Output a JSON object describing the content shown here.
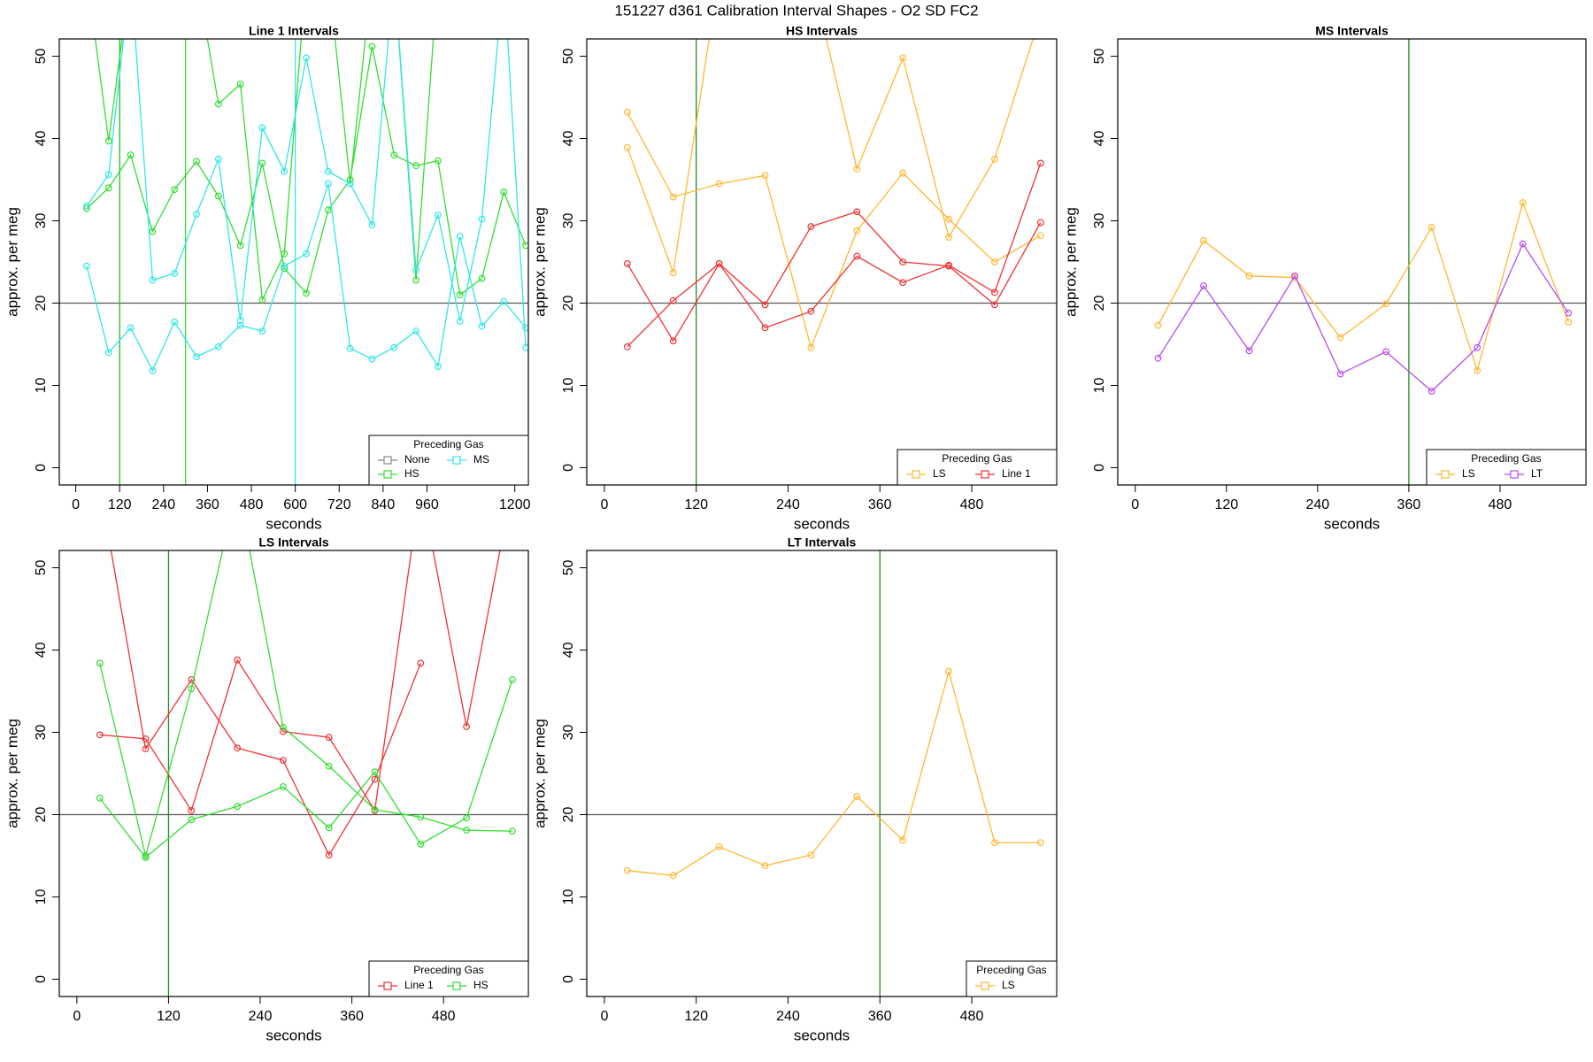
{
  "title": "151227   d361   Calibration Interval Shapes - O2 SD FC2",
  "chart_data": [
    {
      "type": "line",
      "title": "Line 1 Intervals",
      "x_label": "seconds",
      "y_label": "approx. per meg",
      "x": [
        30,
        90,
        150,
        210,
        270,
        330,
        390,
        450,
        510,
        570,
        630,
        690,
        750,
        810,
        870,
        930,
        990,
        1050,
        1110,
        1170,
        1230
      ],
      "xlim": [
        -45,
        1237
      ],
      "ylim": [
        -2.1,
        52.1
      ],
      "xticks": [
        0,
        120,
        240,
        360,
        480,
        600,
        720,
        840,
        960,
        1200
      ],
      "yticks": [
        0,
        10,
        20,
        30,
        40,
        50
      ],
      "hline": 20,
      "vlines": [
        {
          "x": 120,
          "color": "#22bb22"
        },
        {
          "x": 300,
          "color": "#33dd33"
        },
        {
          "x": 600,
          "color": "#33e6e6"
        }
      ],
      "legend_title": "Preceding Gas",
      "legend_position": "bottomright",
      "series": [
        {
          "name": "None",
          "color": "#888888",
          "lines": []
        },
        {
          "name": "HS",
          "color": "#33dd33",
          "lines": [
            [
              31.5,
              34,
              38,
              28.7,
              33.8,
              37.2,
              33,
              27,
              37,
              24.2,
              21.2,
              31.3,
              35,
              51.2,
              38,
              36.7,
              37.3,
              21,
              23,
              33.5,
              27
            ],
            [
              60,
              39.7,
              60,
              60,
              60,
              60,
              44.2,
              46.6,
              20.4,
              26,
              60,
              60,
              34.5,
              60,
              60,
              22.8,
              60,
              60,
              60,
              60,
              60
            ]
          ]
        },
        {
          "name": "MS",
          "color": "#33e6e6",
          "lines": [
            [
              24.5,
              14,
              17,
              11.8,
              17.7,
              13.5,
              14.7,
              17.3,
              16.6,
              24.5,
              26,
              34.5,
              14.5,
              13.2,
              14.6,
              16.6,
              12.3,
              28.1,
              17.2,
              20.2,
              17
            ],
            [
              31.8,
              35.6,
              60,
              22.8,
              23.6,
              30.8,
              37.5,
              17.9,
              41.3,
              36,
              49.8,
              36,
              34.5,
              29.5,
              60,
              24,
              30.7,
              17.8,
              30.2,
              60,
              14.6
            ]
          ]
        }
      ]
    },
    {
      "type": "line",
      "title": "HS Intervals",
      "x_label": "seconds",
      "y_label": "approx. per meg",
      "x": [
        30,
        90,
        150,
        210,
        270,
        330,
        390,
        450,
        510,
        570
      ],
      "xlim": [
        -23,
        591
      ],
      "ylim": [
        -2.1,
        52.1
      ],
      "xticks": [
        0,
        120,
        240,
        360,
        480
      ],
      "yticks": [
        0,
        10,
        20,
        30,
        40,
        50
      ],
      "hline": 20,
      "vlines": [
        {
          "x": 120,
          "color": "#228b22"
        }
      ],
      "legend_title": "Preceding Gas",
      "legend_position": "bottomright",
      "series": [
        {
          "name": "LS",
          "color": "#ffb733",
          "lines": [
            [
              43.2,
              32.9,
              34.5,
              35.5,
              14.6,
              28.8,
              35.8,
              30.2,
              25,
              28.2
            ],
            [
              38.9,
              23.7,
              60,
              60,
              60,
              36.3,
              49.8,
              28,
              37.5,
              55
            ]
          ]
        },
        {
          "name": "Line 1",
          "color": "#ee3333",
          "lines": [
            [
              24.8,
              15.4,
              24.8,
              17,
              19,
              25.7,
              22.5,
              24.6,
              21.3,
              37
            ],
            [
              14.7,
              20.3,
              24.8,
              19.8,
              29.3,
              31.1,
              25,
              24.5,
              19.8,
              29.8
            ]
          ]
        }
      ]
    },
    {
      "type": "line",
      "title": "MS Intervals",
      "x_label": "seconds",
      "y_label": "approx. per meg",
      "x": [
        30,
        90,
        150,
        210,
        270,
        330,
        390,
        450,
        510,
        570
      ],
      "xlim": [
        -23,
        593
      ],
      "ylim": [
        -2.1,
        52.1
      ],
      "xticks": [
        0,
        120,
        240,
        360,
        480
      ],
      "yticks": [
        0,
        10,
        20,
        30,
        40,
        50
      ],
      "hline": 20,
      "vlines": [
        {
          "x": 360,
          "color": "#228b22"
        }
      ],
      "legend_title": "Preceding Gas",
      "legend_position": "bottomright",
      "series": [
        {
          "name": "LS",
          "color": "#ffb733",
          "lines": [
            [
              17.3,
              27.6,
              23.3,
              23.1,
              15.8,
              19.9,
              29.2,
              11.8,
              32.2,
              17.7
            ]
          ]
        },
        {
          "name": "LT",
          "color": "#b44cf0",
          "lines": [
            [
              13.3,
              22.1,
              14.2,
              23.3,
              11.4,
              14.1,
              9.3,
              14.6,
              27.2,
              18.8
            ]
          ]
        }
      ]
    },
    {
      "type": "line",
      "title": "LS Intervals",
      "x_label": "seconds",
      "y_label": "approx. per meg",
      "x": [
        30,
        90,
        150,
        210,
        270,
        330,
        390,
        450,
        510,
        570
      ],
      "xlim": [
        -23,
        591
      ],
      "ylim": [
        -2.1,
        52.1
      ],
      "xticks": [
        0,
        120,
        240,
        360,
        480
      ],
      "yticks": [
        0,
        10,
        20,
        30,
        40,
        50
      ],
      "hline": 20,
      "vlines": [
        {
          "x": 120,
          "color": "#228b22"
        }
      ],
      "legend_title": "Preceding Gas",
      "legend_position": "bottomright",
      "series": [
        {
          "name": "Line 1",
          "color": "#ee3333",
          "lines": [
            [
              29.7,
              29.2,
              20.5,
              38.8,
              30.1,
              29.4,
              20.5,
              60,
              30.7,
              60
            ],
            [
              60,
              28,
              36.4,
              28.1,
              26.6,
              15.1,
              24.3,
              38.4,
              null,
              null
            ]
          ]
        },
        {
          "name": "HS",
          "color": "#33dd33",
          "lines": [
            [
              38.4,
              15,
              35.3,
              60,
              30.6,
              25.9,
              20.6,
              19.7,
              18.1,
              18
            ],
            [
              22,
              14.8,
              19.4,
              21,
              23.4,
              18.4,
              25.2,
              16.4,
              19.6,
              36.4
            ]
          ]
        }
      ]
    },
    {
      "type": "line",
      "title": "LT Intervals",
      "x_label": "seconds",
      "y_label": "approx. per meg",
      "x": [
        30,
        90,
        150,
        210,
        270,
        330,
        390,
        450,
        510,
        570
      ],
      "xlim": [
        -23,
        591
      ],
      "ylim": [
        -2.1,
        52.1
      ],
      "xticks": [
        0,
        120,
        240,
        360,
        480
      ],
      "yticks": [
        0,
        10,
        20,
        30,
        40,
        50
      ],
      "hline": 20,
      "vlines": [
        {
          "x": 360,
          "color": "#228b22"
        }
      ],
      "legend_title": "Preceding Gas",
      "legend_position": "bottomright",
      "series": [
        {
          "name": "LS",
          "color": "#ffb733",
          "lines": [
            [
              13.2,
              12.6,
              16.1,
              13.8,
              15.1,
              22.2,
              16.9,
              37.4,
              16.6,
              16.6
            ]
          ]
        }
      ]
    }
  ]
}
